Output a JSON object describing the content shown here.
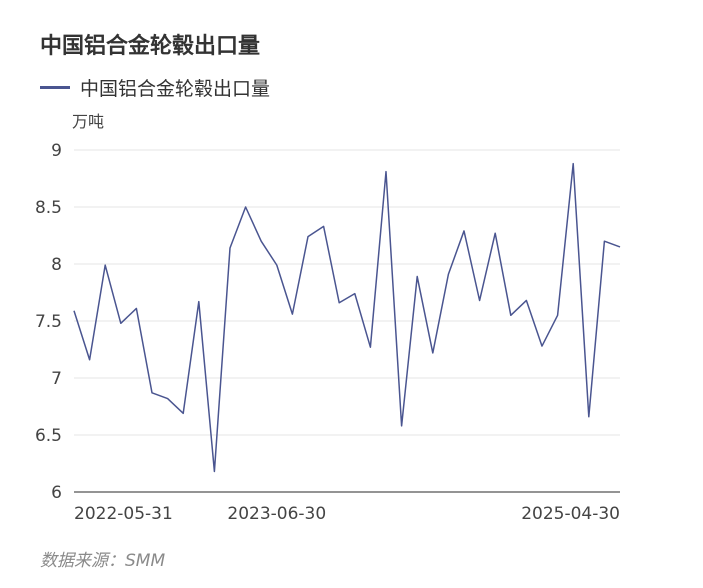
{
  "title": "中国铝合金轮毂出口量",
  "legend": {
    "series_name": "中国铝合金轮毂出口量"
  },
  "unit": "万吨",
  "source": "数据来源：SMM",
  "colors": {
    "line": "#4a5590",
    "grid": "#e6e6e6",
    "axis": "#555555"
  },
  "chart_data": {
    "type": "line",
    "title": "中国铝合金轮毂出口量",
    "ylabel": "万吨",
    "ylim": [
      6,
      9
    ],
    "yticks": [
      6,
      6.5,
      7,
      7.5,
      8,
      8.5,
      9
    ],
    "xtick_labels": [
      {
        "index": 0,
        "label": "2022-05-31"
      },
      {
        "index": 13,
        "label": "2023-06-30"
      },
      {
        "index": 35,
        "label": "2025-04-30"
      }
    ],
    "grid": true,
    "legend_position": "top-left",
    "series": [
      {
        "name": "中国铝合金轮毂出口量",
        "values": [
          7.59,
          7.16,
          7.99,
          7.48,
          7.61,
          6.87,
          6.82,
          6.69,
          7.67,
          6.18,
          8.14,
          8.5,
          8.2,
          7.99,
          7.56,
          8.24,
          8.33,
          7.66,
          7.74,
          7.27,
          8.81,
          6.58,
          7.89,
          7.22,
          7.91,
          8.29,
          7.68,
          8.27,
          7.55,
          7.68,
          7.28,
          7.55,
          8.88,
          6.66,
          8.2,
          8.15
        ]
      }
    ]
  }
}
